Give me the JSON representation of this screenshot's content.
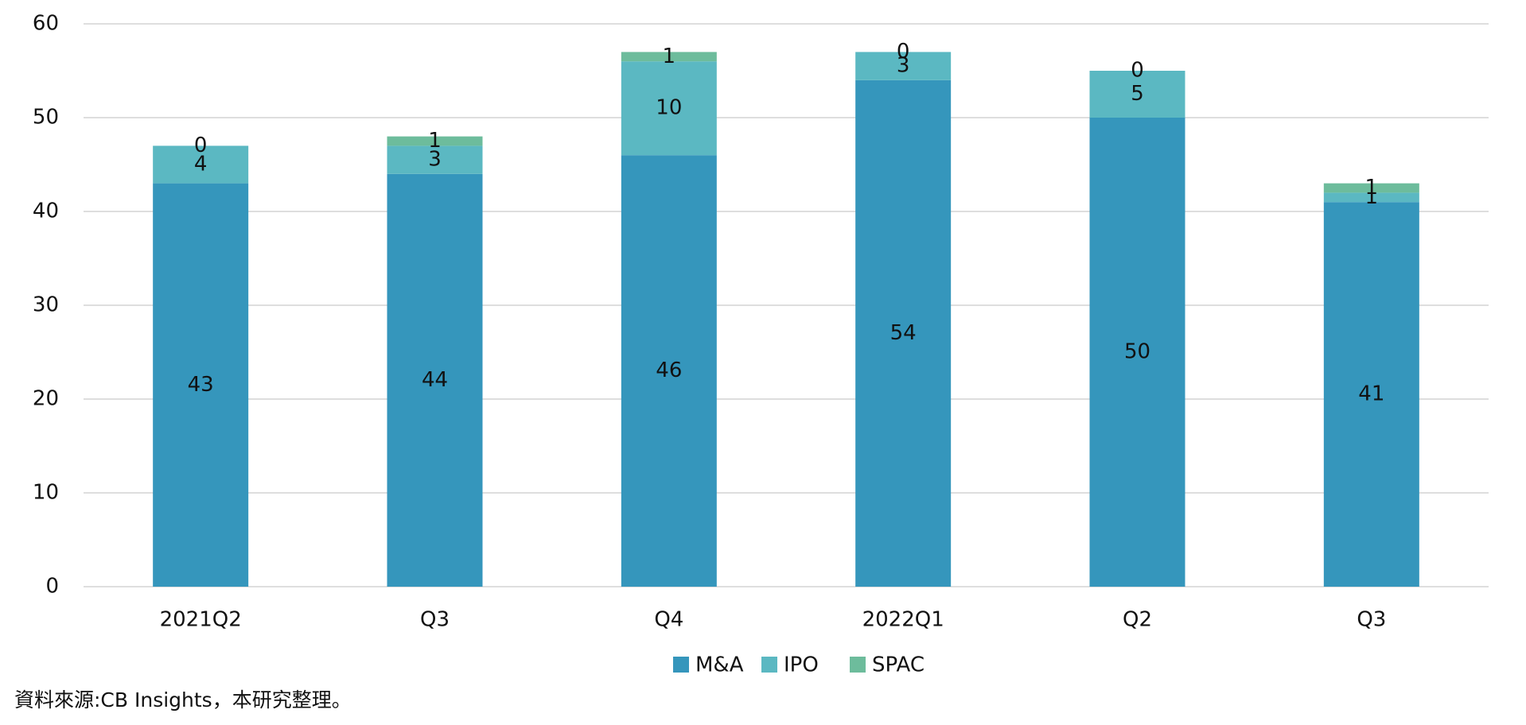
{
  "chart_data": {
    "type": "stacked_bar",
    "categories": [
      "2021Q2",
      "Q3",
      "Q4",
      "2022Q1",
      "Q2",
      "Q3"
    ],
    "series": [
      {
        "name": "M&A",
        "color": "#3596bc",
        "values": [
          43,
          44,
          46,
          54,
          50,
          41
        ]
      },
      {
        "name": "IPO",
        "color": "#5bb8c2",
        "values": [
          4,
          3,
          10,
          3,
          5,
          1
        ]
      },
      {
        "name": "SPAC",
        "color": "#6dbc9c",
        "values": [
          0,
          1,
          1,
          0,
          0,
          1
        ]
      }
    ],
    "ylim": [
      0,
      60
    ],
    "yticks": [
      0,
      10,
      20,
      30,
      40,
      50,
      60
    ],
    "grid": true,
    "legend": "bottom",
    "source": "資料來源:CB Insights，本研究整理。"
  }
}
